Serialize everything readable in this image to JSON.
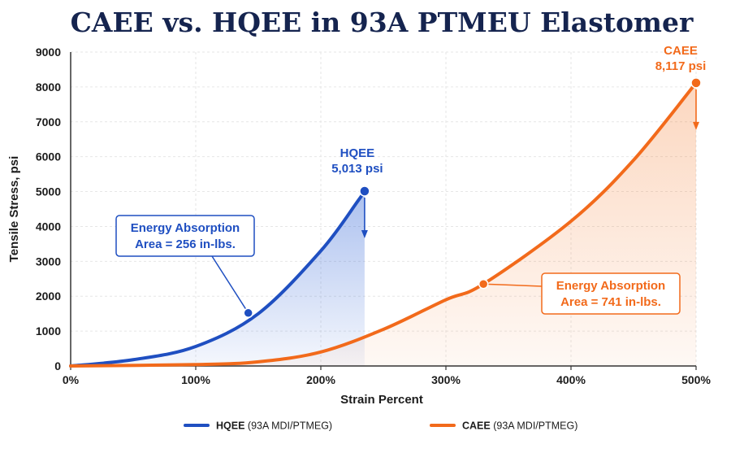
{
  "chart_data": {
    "type": "line",
    "title": "CAEE vs. HQEE in 93A PTMEU Elastomer",
    "xlabel": "Strain Percent",
    "ylabel": "Tensile Stress, psi",
    "xlim": [
      0,
      500
    ],
    "ylim": [
      0,
      9000
    ],
    "x_ticks": [
      "0%",
      "100%",
      "200%",
      "300%",
      "400%",
      "500%"
    ],
    "y_ticks": [
      "0",
      "1000",
      "2000",
      "3000",
      "4000",
      "5000",
      "6000",
      "7000",
      "8000",
      "9000"
    ],
    "grid": true,
    "legend_position": "bottom",
    "series": [
      {
        "name": "HQEE",
        "legend_suffix": "(93A MDI/PTMEG)",
        "color": "#1f4fc1",
        "x": [
          0,
          50,
          100,
          150,
          200,
          230,
          235
        ],
        "y": [
          0,
          180,
          560,
          1500,
          3300,
          4750,
          5013
        ],
        "end_point": {
          "x": 235,
          "y": 5013
        },
        "end_label": [
          "HQEE",
          "5,013 psi"
        ],
        "area_point": {
          "x": 142,
          "y": 1520
        },
        "area_label": [
          "Energy Absorption",
          "Area = 256 in-lbs."
        ]
      },
      {
        "name": "CAEE",
        "legend_suffix": "(93A MDI/PTMEG)",
        "color": "#f26a1b",
        "x": [
          0,
          100,
          150,
          200,
          250,
          300,
          330,
          400,
          450,
          500
        ],
        "y": [
          0,
          40,
          120,
          400,
          1050,
          1900,
          2350,
          4150,
          5900,
          8117
        ],
        "end_point": {
          "x": 500,
          "y": 8117
        },
        "end_label": [
          "CAEE",
          "8,117 psi"
        ],
        "area_point": {
          "x": 330,
          "y": 2350
        },
        "area_label": [
          "Energy Absorption",
          "Area = 741 in-lbs."
        ]
      }
    ]
  }
}
